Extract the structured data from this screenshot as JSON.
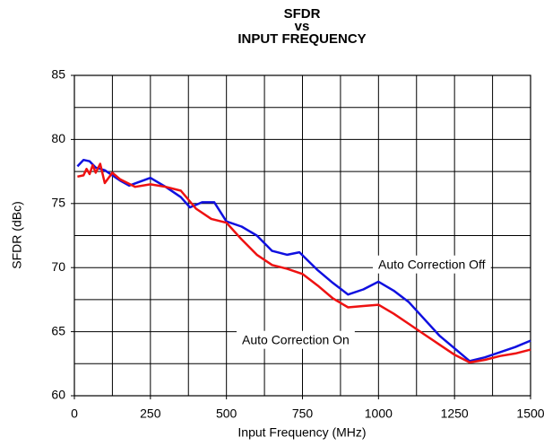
{
  "chart_data": {
    "type": "line",
    "title": [
      "SFDR",
      "vs",
      "INPUT FREQUENCY"
    ],
    "x_label": "Input Frequency (MHz)",
    "y_label": "SFDR (dBc)",
    "xlim": [
      0,
      1500
    ],
    "ylim": [
      60,
      85
    ],
    "xticks": [
      0,
      250,
      500,
      750,
      1000,
      1250,
      1500
    ],
    "yticks": [
      60,
      65,
      70,
      75,
      80,
      85
    ],
    "xgrid": [
      0,
      125,
      250,
      375,
      500,
      625,
      750,
      875,
      1000,
      1125,
      1250,
      1375,
      1500
    ],
    "ygrid": [
      60,
      62.5,
      65,
      67.5,
      70,
      72.5,
      75,
      77.5,
      80,
      82.5,
      85
    ],
    "grid": true,
    "series": [
      {
        "name": "Auto Correction Off",
        "color": "#1010e0",
        "x": [
          10,
          30,
          50,
          70,
          100,
          150,
          180,
          250,
          300,
          350,
          380,
          420,
          460,
          500,
          550,
          600,
          650,
          700,
          740,
          800,
          850,
          900,
          950,
          1000,
          1050,
          1100,
          1150,
          1200,
          1250,
          1300,
          1350,
          1400,
          1450,
          1500
        ],
        "values": [
          77.9,
          78.4,
          78.3,
          77.8,
          77.6,
          76.8,
          76.4,
          77.0,
          76.3,
          75.5,
          74.7,
          75.1,
          75.1,
          73.6,
          73.2,
          72.5,
          71.3,
          71.0,
          71.2,
          69.8,
          68.8,
          67.9,
          68.3,
          68.9,
          68.2,
          67.3,
          66.0,
          64.7,
          63.7,
          62.7,
          63.0,
          63.4,
          63.8,
          64.3
        ]
      },
      {
        "name": "Auto Correction On",
        "color": "#ee1111",
        "x": [
          10,
          30,
          40,
          50,
          60,
          70,
          85,
          100,
          125,
          150,
          200,
          250,
          300,
          350,
          400,
          450,
          500,
          550,
          600,
          650,
          700,
          750,
          800,
          850,
          900,
          950,
          1000,
          1050,
          1100,
          1150,
          1200,
          1250,
          1300,
          1350,
          1400,
          1450,
          1500
        ],
        "values": [
          77.1,
          77.2,
          77.7,
          77.3,
          78.0,
          77.4,
          78.1,
          76.6,
          77.4,
          76.9,
          76.3,
          76.5,
          76.3,
          76.0,
          74.6,
          73.8,
          73.5,
          72.2,
          71.0,
          70.2,
          69.9,
          69.5,
          68.6,
          67.6,
          66.9,
          67.0,
          67.1,
          66.4,
          65.6,
          64.8,
          64.0,
          63.2,
          62.6,
          62.8,
          63.1,
          63.3,
          63.6
        ]
      }
    ]
  }
}
